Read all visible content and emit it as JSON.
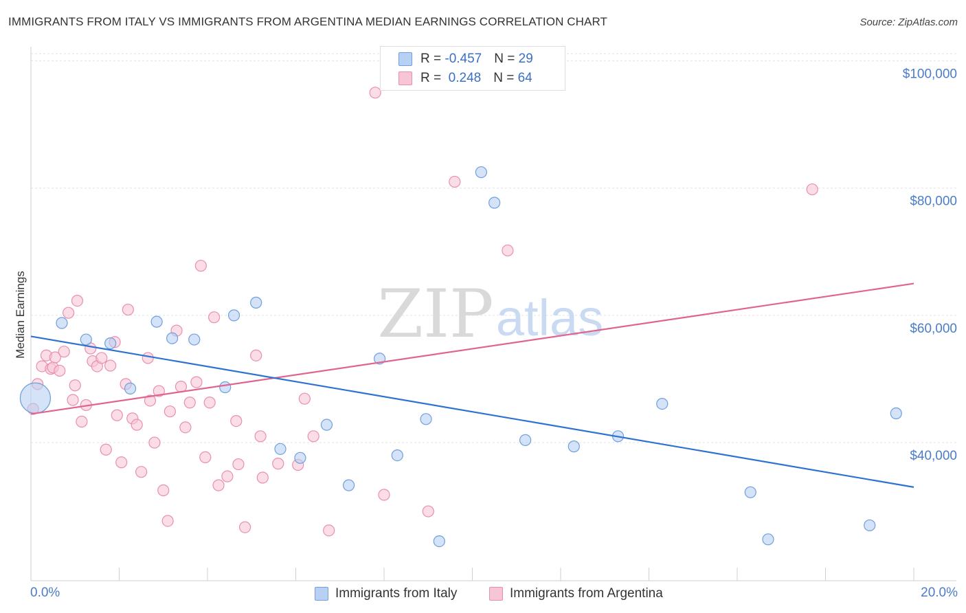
{
  "title": "IMMIGRANTS FROM ITALY VS IMMIGRANTS FROM ARGENTINA MEDIAN EARNINGS CORRELATION CHART",
  "source": "Source: ZipAtlas.com",
  "watermark": {
    "zip": "ZIP",
    "atlas": "atlas"
  },
  "legend": {
    "italy": {
      "r_label": "R = ",
      "r_value": "-0.457",
      "n_label": "N = ",
      "n_value": "29"
    },
    "argentina": {
      "r_label": "R = ",
      "r_value": " 0.248",
      "n_label": "N = ",
      "n_value": "64"
    }
  },
  "colors": {
    "italy_fill": "#b8d1f2",
    "italy_stroke": "#6f9fdc",
    "italy_line": "#2d72d2",
    "argentina_fill": "#f7c6d6",
    "argentina_stroke": "#e98fae",
    "argentina_line": "#e0648f",
    "axis_text": "#4a7cc7"
  },
  "chart_data": {
    "type": "scatter",
    "title": "IMMIGRANTS FROM ITALY VS IMMIGRANTS FROM ARGENTINA MEDIAN EARNINGS CORRELATION CHART",
    "xlabel": "",
    "ylabel": "Median Earnings",
    "x_tick_labels": {
      "min": "0.0%",
      "max": "20.0%"
    },
    "xlim": [
      0,
      20
    ],
    "ylim": [
      21000,
      102000
    ],
    "y_ticks": [
      {
        "value": 100000,
        "label": "$100,000"
      },
      {
        "value": 80000,
        "label": "$80,000"
      },
      {
        "value": 60000,
        "label": "$60,000"
      },
      {
        "value": 40000,
        "label": "$40,000"
      }
    ],
    "grid": true,
    "series": [
      {
        "name": "Immigrants from Italy",
        "r": -0.457,
        "n": 29,
        "trend": {
          "x0": 0,
          "y0": 56700,
          "x1": 20,
          "y1": 33000
        },
        "points": [
          {
            "x": 0.1,
            "y": 47000,
            "big": true
          },
          {
            "x": 0.7,
            "y": 58800
          },
          {
            "x": 1.25,
            "y": 56200
          },
          {
            "x": 1.8,
            "y": 55600
          },
          {
            "x": 2.25,
            "y": 48500
          },
          {
            "x": 2.85,
            "y": 59000
          },
          {
            "x": 3.2,
            "y": 56400
          },
          {
            "x": 3.7,
            "y": 56200
          },
          {
            "x": 4.4,
            "y": 48700
          },
          {
            "x": 4.6,
            "y": 60000
          },
          {
            "x": 5.1,
            "y": 62000
          },
          {
            "x": 5.65,
            "y": 39000
          },
          {
            "x": 6.1,
            "y": 37600
          },
          {
            "x": 6.7,
            "y": 42800
          },
          {
            "x": 7.2,
            "y": 33300
          },
          {
            "x": 7.9,
            "y": 53200
          },
          {
            "x": 8.3,
            "y": 38000
          },
          {
            "x": 8.95,
            "y": 43700
          },
          {
            "x": 9.25,
            "y": 24500
          },
          {
            "x": 10.2,
            "y": 82500
          },
          {
            "x": 10.5,
            "y": 77700
          },
          {
            "x": 11.2,
            "y": 40400
          },
          {
            "x": 12.3,
            "y": 39400
          },
          {
            "x": 13.3,
            "y": 41000
          },
          {
            "x": 14.3,
            "y": 46100
          },
          {
            "x": 16.3,
            "y": 32200
          },
          {
            "x": 16.7,
            "y": 24800
          },
          {
            "x": 19.0,
            "y": 27000
          },
          {
            "x": 19.6,
            "y": 44600
          }
        ]
      },
      {
        "name": "Immigrants from Argentina",
        "r": 0.248,
        "n": 64,
        "trend": {
          "x0": 0,
          "y0": 44500,
          "x1": 20,
          "y1": 65000
        },
        "points": [
          {
            "x": 0.05,
            "y": 45300
          },
          {
            "x": 0.15,
            "y": 49200
          },
          {
            "x": 0.25,
            "y": 52000
          },
          {
            "x": 0.35,
            "y": 53700
          },
          {
            "x": 0.45,
            "y": 51600
          },
          {
            "x": 0.5,
            "y": 51800
          },
          {
            "x": 0.55,
            "y": 53400
          },
          {
            "x": 0.65,
            "y": 51300
          },
          {
            "x": 0.75,
            "y": 54300
          },
          {
            "x": 0.85,
            "y": 60400
          },
          {
            "x": 0.95,
            "y": 46700
          },
          {
            "x": 1.0,
            "y": 49000
          },
          {
            "x": 1.05,
            "y": 62300
          },
          {
            "x": 1.15,
            "y": 43300
          },
          {
            "x": 1.25,
            "y": 45900
          },
          {
            "x": 1.35,
            "y": 54800
          },
          {
            "x": 1.4,
            "y": 52800
          },
          {
            "x": 1.5,
            "y": 52000
          },
          {
            "x": 1.6,
            "y": 53300
          },
          {
            "x": 1.7,
            "y": 38900
          },
          {
            "x": 1.8,
            "y": 52100
          },
          {
            "x": 1.9,
            "y": 55800
          },
          {
            "x": 1.95,
            "y": 44300
          },
          {
            "x": 2.05,
            "y": 36900
          },
          {
            "x": 2.15,
            "y": 49200
          },
          {
            "x": 2.2,
            "y": 60900
          },
          {
            "x": 2.3,
            "y": 43800
          },
          {
            "x": 2.4,
            "y": 42800
          },
          {
            "x": 2.5,
            "y": 35400
          },
          {
            "x": 2.65,
            "y": 53300
          },
          {
            "x": 2.7,
            "y": 46600
          },
          {
            "x": 2.8,
            "y": 40000
          },
          {
            "x": 2.9,
            "y": 48100
          },
          {
            "x": 3.0,
            "y": 32500
          },
          {
            "x": 3.1,
            "y": 27700
          },
          {
            "x": 3.15,
            "y": 44900
          },
          {
            "x": 3.3,
            "y": 57600
          },
          {
            "x": 3.4,
            "y": 48800
          },
          {
            "x": 3.5,
            "y": 42400
          },
          {
            "x": 3.6,
            "y": 46300
          },
          {
            "x": 3.75,
            "y": 49500
          },
          {
            "x": 3.85,
            "y": 67800
          },
          {
            "x": 3.95,
            "y": 37700
          },
          {
            "x": 4.05,
            "y": 46300
          },
          {
            "x": 4.15,
            "y": 59700
          },
          {
            "x": 4.25,
            "y": 33300
          },
          {
            "x": 4.45,
            "y": 34700
          },
          {
            "x": 4.65,
            "y": 43400
          },
          {
            "x": 4.7,
            "y": 36600
          },
          {
            "x": 4.85,
            "y": 26700
          },
          {
            "x": 5.1,
            "y": 53700
          },
          {
            "x": 5.2,
            "y": 41000
          },
          {
            "x": 5.25,
            "y": 34500
          },
          {
            "x": 5.6,
            "y": 36700
          },
          {
            "x": 6.05,
            "y": 36500
          },
          {
            "x": 6.2,
            "y": 46900
          },
          {
            "x": 6.4,
            "y": 41000
          },
          {
            "x": 6.75,
            "y": 26200
          },
          {
            "x": 7.8,
            "y": 95000
          },
          {
            "x": 8.0,
            "y": 31800
          },
          {
            "x": 9.0,
            "y": 29200
          },
          {
            "x": 9.6,
            "y": 81000
          },
          {
            "x": 10.8,
            "y": 70200
          },
          {
            "x": 17.7,
            "y": 79800
          }
        ]
      }
    ]
  },
  "bottom_legend": {
    "italy": "Immigrants from Italy",
    "argentina": "Immigrants from Argentina"
  }
}
